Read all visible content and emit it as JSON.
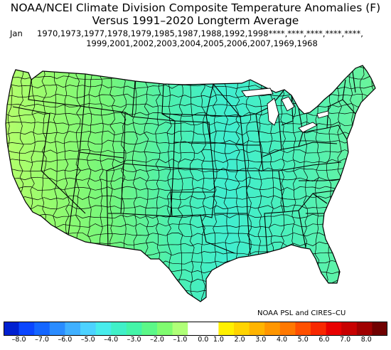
{
  "title": {
    "line1": "NOAA/NCEI Climate Division Composite Temperature Anomalies (F)",
    "line2": "Versus 1991–2020 Longterm Average"
  },
  "years": {
    "month": "Jan",
    "line1": "1970,1973,1977,1978,1979,1985,1987,1988,1992,1998****,****,****,****,****,",
    "line2": "1999,2001,2002,2003,2004,2005,2006,2007,1969,1968"
  },
  "credit": "NOAA PSL and CIRES–CU",
  "colorbar": {
    "colors": [
      "#0020d0",
      "#0a46ff",
      "#1466ff",
      "#2a8cff",
      "#40b0ff",
      "#4cd2ff",
      "#48ecec",
      "#40f0c8",
      "#44f4a8",
      "#5cf888",
      "#80fc70",
      "#b0ff78",
      "#ffffff",
      "#ffffff",
      "#fff000",
      "#ffd400",
      "#ffb400",
      "#ff9600",
      "#ff7800",
      "#ff5000",
      "#f82800",
      "#e80000",
      "#c80000",
      "#a00000",
      "#700000"
    ],
    "labels": [
      "–8.0",
      "–7.0",
      "–6.0",
      "–5.0",
      "–4.0",
      "–3.0",
      "–2.0",
      "–1.0",
      "0.0",
      "1.0",
      "2.0",
      "3.0",
      "4.0",
      "5.0",
      "6.0",
      "7.0",
      "8.0"
    ]
  },
  "map": {
    "region": "contiguous-united-states",
    "anomaly_colors": {
      "west_coast": "#a8ff70",
      "northwest": "#90fc6c",
      "great_basin": "#80fa72",
      "southwest": "#74f67a",
      "rockies": "#66f486",
      "plains": "#4cf0ac",
      "central": "#40eed0",
      "south_central": "#44f0c8",
      "southeast": "#58f4a4",
      "great_lakes": "#50f0b4",
      "northeast": "#66f49a",
      "florida": "#60f49c"
    }
  }
}
